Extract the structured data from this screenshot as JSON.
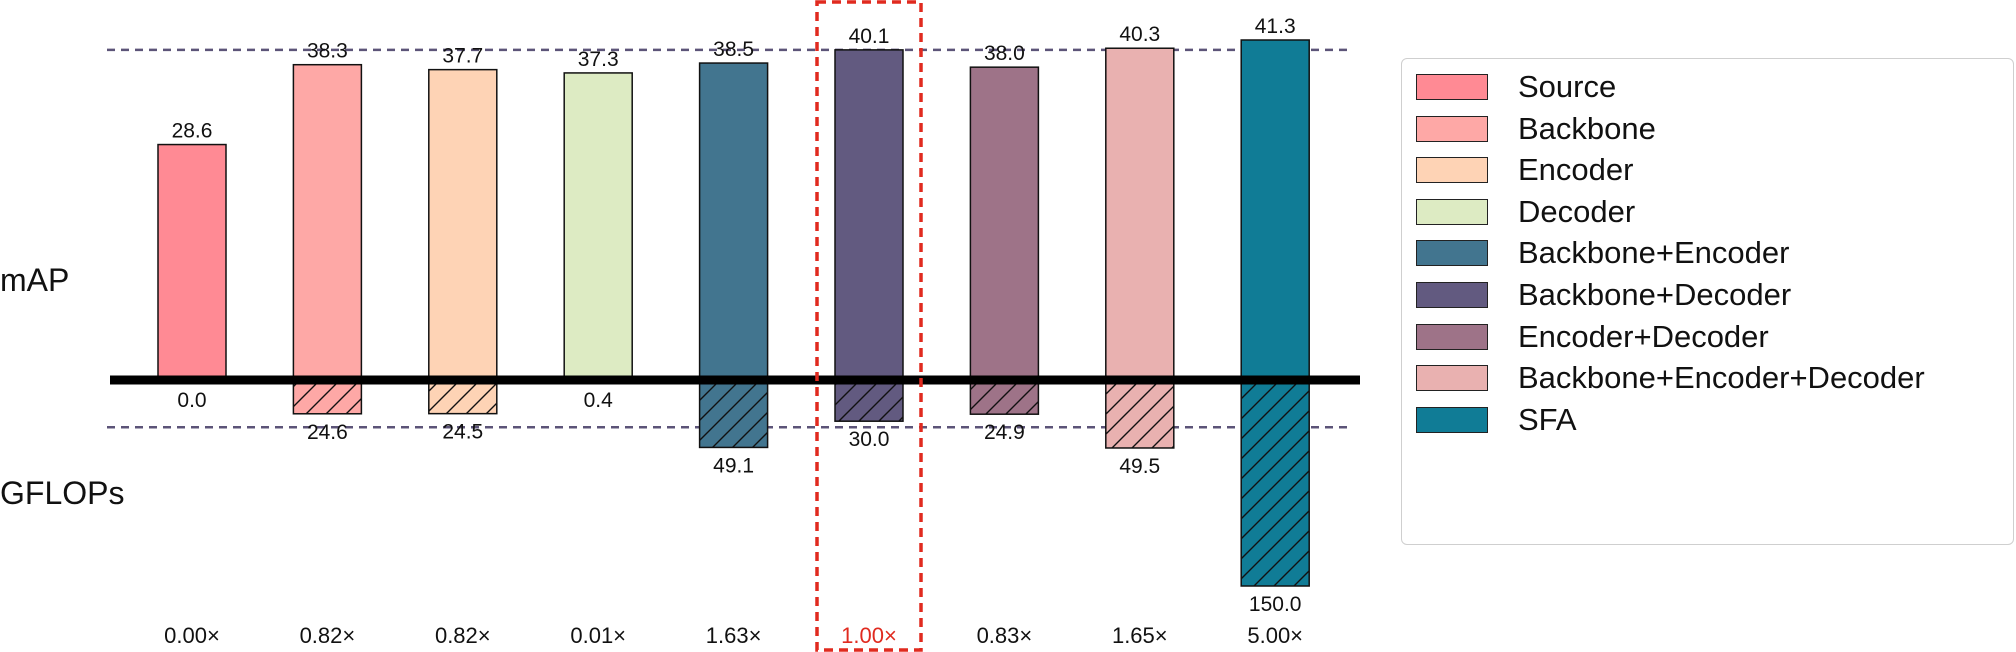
{
  "chart_data": {
    "type": "bar",
    "categories": [
      "Source",
      "Backbone",
      "Encoder",
      "Decoder",
      "Backbone+Encoder",
      "Backbone+Decoder",
      "Encoder+Decoder",
      "Backbone+Encoder+Decoder",
      "SFA"
    ],
    "series": [
      {
        "name": "mAP",
        "values": [
          28.6,
          38.3,
          37.7,
          37.3,
          38.5,
          40.1,
          38.0,
          40.3,
          41.3
        ],
        "labels": [
          "28.6",
          "38.3",
          "37.7",
          "37.3",
          "38.5",
          "40.1",
          "38.0",
          "40.3",
          "41.3"
        ]
      },
      {
        "name": "GFLOPs",
        "values": [
          0.0,
          24.6,
          24.5,
          0.4,
          49.1,
          30.0,
          24.9,
          49.5,
          150.0
        ],
        "labels": [
          "0.0",
          "24.6",
          "24.5",
          "0.4",
          "49.1",
          "30.0",
          "24.9",
          "49.5",
          "150.0"
        ]
      }
    ],
    "ratios": [
      "0.00×",
      "0.82×",
      "0.82×",
      "0.01×",
      "1.63×",
      "1.00×",
      "0.83×",
      "1.65×",
      "5.00×"
    ],
    "colors": [
      "#FF8A94",
      "#FEA8A6",
      "#FED3B5",
      "#DDEBC3",
      "#42758F",
      "#625A80",
      "#9E7388",
      "#E9B1B0",
      "#107C96"
    ],
    "highlight_color": "#E02A1F",
    "reference_line_color": "#5C5478",
    "highlight_index": 5,
    "map_reference": 40.1,
    "gflops_reference": 30.0,
    "ylabel_top": "mAP",
    "ylabel_bottom": "GFLOPs",
    "legend_position": "right",
    "grid": false
  }
}
